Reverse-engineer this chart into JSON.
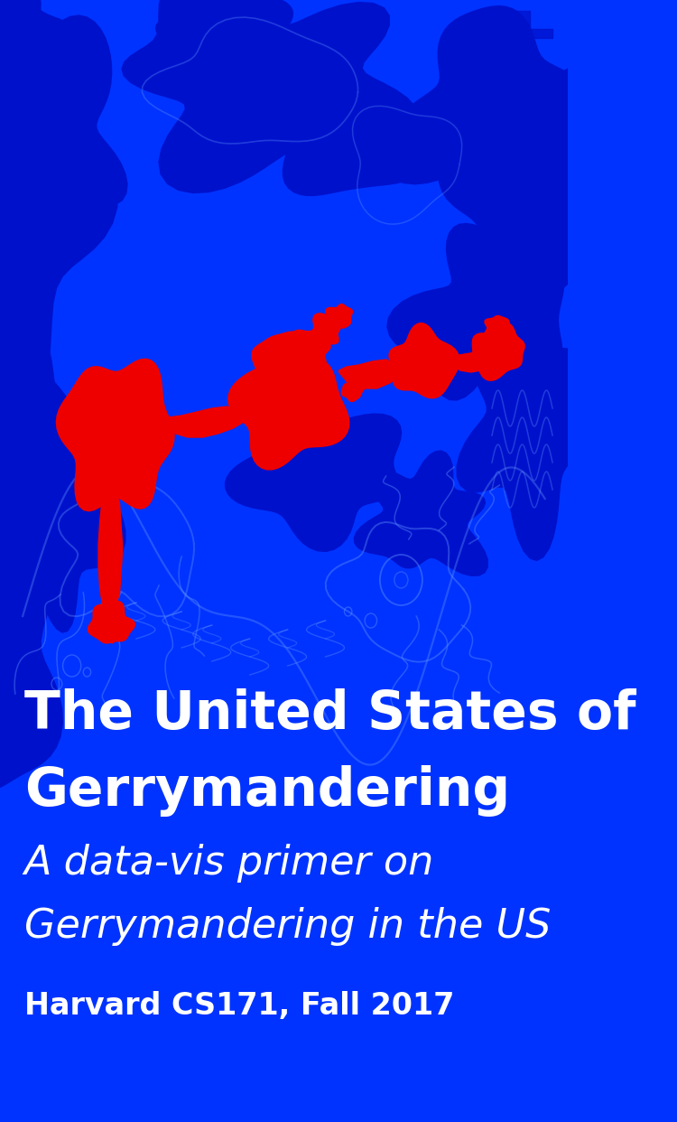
{
  "bg_color": "#0033ff",
  "dark_blue": "#0011cc",
  "medium_blue": "#1144ee",
  "light_blue": "#4477ff",
  "lighter_blue": "#6699ff",
  "red_color": "#ee0000",
  "white_color": "#ffffff",
  "title_line1": "The United States of",
  "title_line2": "Gerrymandering",
  "subtitle_line1": "A data-vis primer on",
  "subtitle_line2": "Gerrymandering in the US",
  "credit": "Harvard CS171, Fall 2017",
  "title_fontsize": 42,
  "subtitle_fontsize": 32,
  "credit_fontsize": 24,
  "fig_width": 7.5,
  "fig_height": 12.42
}
